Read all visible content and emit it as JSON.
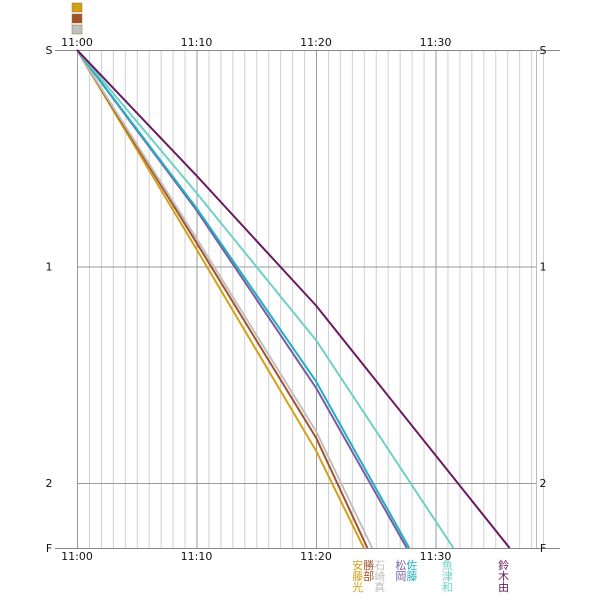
{
  "chart_data": {
    "type": "line",
    "title": "",
    "xlabel": "",
    "ylabel": "",
    "x_unit": "clock time",
    "x_start": "11:00",
    "x_ticks": [
      "11:00",
      "11:10",
      "11:20",
      "11:30"
    ],
    "y_tick_labels": [
      "S",
      "1",
      "2",
      "F"
    ],
    "y_tick_values": [
      0,
      1,
      2,
      2.3
    ],
    "ylim": [
      0,
      2.3
    ],
    "xlim_minutes": [
      0,
      39
    ],
    "grid": true,
    "legend": "bottom, runner names under finish line",
    "series": [
      {
        "name": "安藤光",
        "color": "#d4a017",
        "points": [
          [
            0,
            0
          ],
          [
            10,
            0.92
          ],
          [
            20,
            1.85
          ],
          [
            24,
            2.3
          ]
        ]
      },
      {
        "name": "勝部",
        "color": "#a0522d",
        "points": [
          [
            0,
            0
          ],
          [
            10,
            0.89
          ],
          [
            20,
            1.79
          ],
          [
            24.3,
            2.3
          ]
        ]
      },
      {
        "name": "石崎真",
        "color": "#c0c0c0",
        "points": [
          [
            0,
            0
          ],
          [
            10,
            0.87
          ],
          [
            20,
            1.76
          ],
          [
            24.7,
            2.3
          ]
        ]
      },
      {
        "name": "松岡",
        "color": "#7b5aa6",
        "points": [
          [
            0,
            0
          ],
          [
            10,
            0.74
          ],
          [
            20,
            1.56
          ],
          [
            27.6,
            2.3
          ]
        ]
      },
      {
        "name": "佐藤",
        "color": "#20b0c0",
        "points": [
          [
            0,
            0
          ],
          [
            10,
            0.73
          ],
          [
            20,
            1.53
          ],
          [
            27.8,
            2.3
          ]
        ]
      },
      {
        "name": "魚津和",
        "color": "#6fd0c8",
        "points": [
          [
            0,
            0
          ],
          [
            10,
            0.66
          ],
          [
            20,
            1.34
          ],
          [
            31.5,
            2.3
          ]
        ]
      },
      {
        "name": "鈴木由",
        "color": "#6a1a5e",
        "points": [
          [
            0,
            0
          ],
          [
            10,
            0.58
          ],
          [
            20,
            1.18
          ],
          [
            36.2,
            2.3
          ]
        ]
      }
    ]
  },
  "top_markers": [
    "#d4a017",
    "#a0522d",
    "#c0c0c0"
  ]
}
